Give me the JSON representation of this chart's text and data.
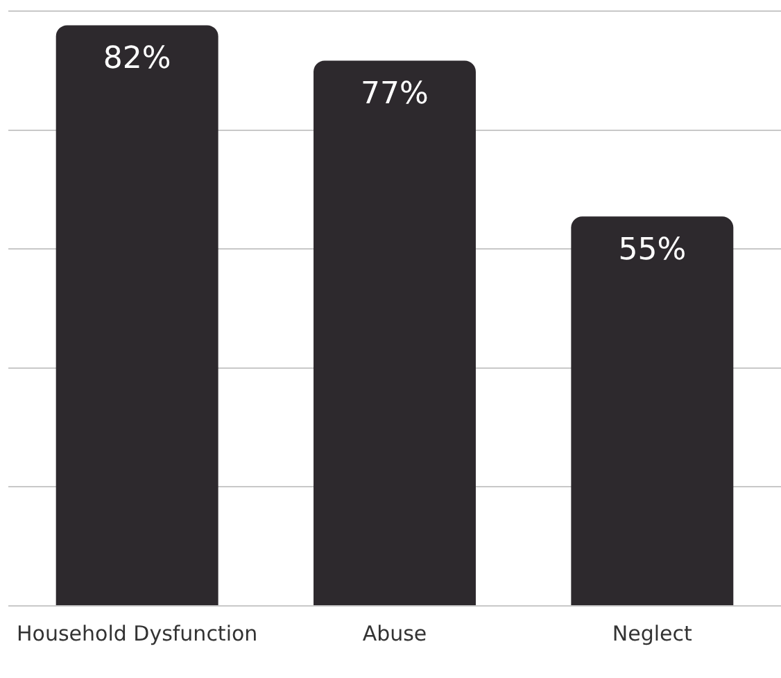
{
  "chart_data": {
    "type": "bar",
    "categories": [
      "Household Dysfunction",
      "Abuse",
      "Neglect"
    ],
    "values": [
      82,
      77,
      55
    ],
    "value_labels": [
      "82%",
      "77%",
      "55%"
    ],
    "color": "#2d292d",
    "ylim": [
      0,
      84
    ],
    "yticks": [
      {
        "value": 0,
        "label": null
      },
      {
        "value": 16.8,
        "label": null
      },
      {
        "value": 33.6,
        "label": null
      },
      {
        "value": 50.4,
        "label": null
      },
      {
        "value": 67.2,
        "label": null
      },
      {
        "value": 84,
        "label": null
      }
    ],
    "grid": "y",
    "tick_labels": "x",
    "legend": false
  }
}
